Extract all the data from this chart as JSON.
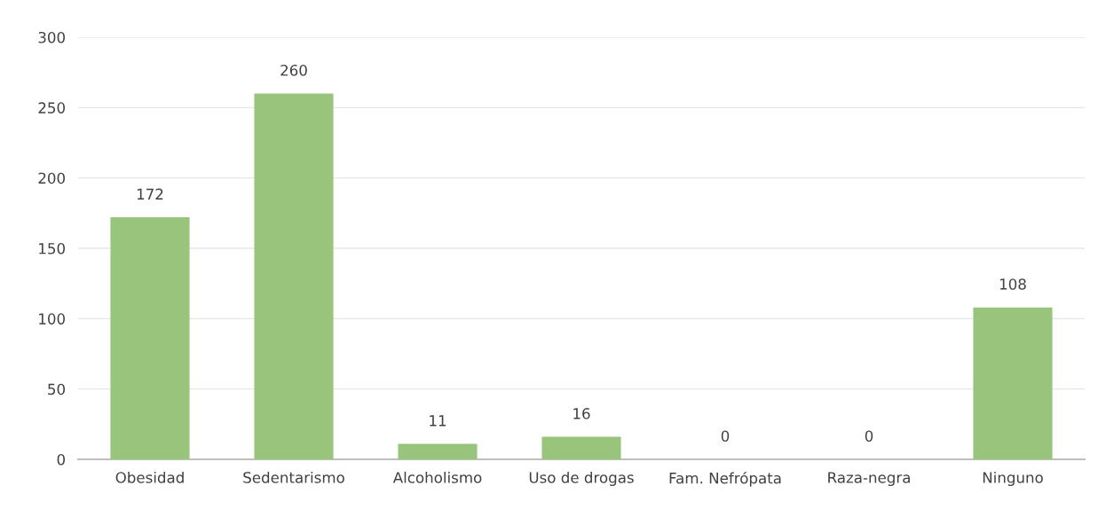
{
  "chart_data": {
    "type": "bar",
    "categories": [
      "Obesidad",
      "Sedentarismo",
      "Alcoholismo",
      "Uso de drogas",
      "Fam. Nefrópata",
      "Raza-negra",
      "Ninguno"
    ],
    "values": [
      172,
      260,
      11,
      16,
      0,
      0,
      108
    ],
    "color": "#98c47c",
    "ylim": [
      0,
      300
    ],
    "yticks": [
      0,
      50,
      100,
      150,
      200,
      250,
      300
    ],
    "grid": "y",
    "data_labels": true
  }
}
